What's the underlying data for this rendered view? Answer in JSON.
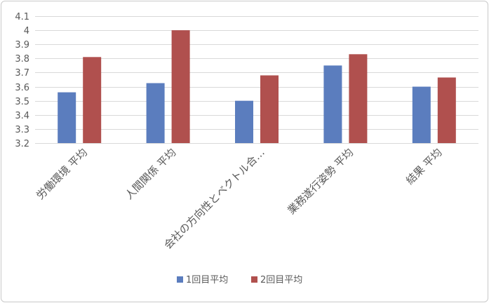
{
  "chart_data": {
    "type": "bar",
    "title": "",
    "xlabel": "",
    "ylabel": "",
    "categories": [
      "労働環境 平均",
      "人間関係 平均",
      "会社の方向性とベクトル合…",
      "業務遂行姿勢 平均",
      "結果 平均"
    ],
    "series": [
      {
        "name": "1回目平均",
        "color": "#5b7dbe",
        "values": [
          3.56,
          3.625,
          3.5,
          3.75,
          3.6
        ]
      },
      {
        "name": "2回目平均",
        "color": "#b0504e",
        "values": [
          3.81,
          4.0,
          3.68,
          3.83,
          3.665
        ]
      }
    ],
    "ylim": [
      3.2,
      4.1
    ],
    "ytick_step": 0.1,
    "ytick_labels": [
      "3.2",
      "3.3",
      "3.4",
      "3.5",
      "3.6",
      "3.7",
      "3.8",
      "3.9",
      "4",
      "4.1"
    ],
    "grid": true,
    "grid_color": "#d9d9d9",
    "legend_position": "bottom"
  }
}
